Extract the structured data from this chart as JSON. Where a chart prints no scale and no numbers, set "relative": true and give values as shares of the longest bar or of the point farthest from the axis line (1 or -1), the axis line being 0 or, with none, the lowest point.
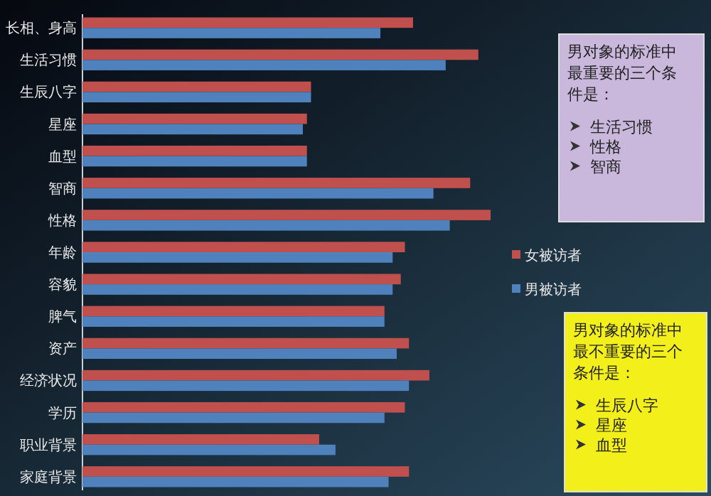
{
  "chart_data": {
    "type": "bar",
    "orientation": "horizontal",
    "relative": true,
    "categories": [
      "长相、身高",
      "生活习惯",
      "生辰八字",
      "星座",
      "血型",
      "智商",
      "性格",
      "年龄",
      "容貌",
      "脾气",
      "资产",
      "经济状况",
      "学历",
      "职业背景",
      "家庭背景"
    ],
    "series": [
      {
        "name": "女被访者",
        "color": "#c0504d",
        "values": [
          0.81,
          0.97,
          0.56,
          0.55,
          0.55,
          0.95,
          1,
          0.79,
          0.78,
          0.74,
          0.8,
          0.85,
          0.79,
          0.58,
          0.8
        ]
      },
      {
        "name": "男被访者",
        "color": "#4f81bd",
        "values": [
          0.73,
          0.89,
          0.56,
          0.54,
          0.55,
          0.86,
          0.9,
          0.76,
          0.76,
          0.74,
          0.77,
          0.8,
          0.74,
          0.62,
          0.75
        ]
      }
    ],
    "legend": "right",
    "annotations": [
      "男对象的标准中最重要的三个条件是：",
      "生活习惯",
      "性格",
      "智商",
      "男对象的标准中最不重要的三个条件是：",
      "生辰八字",
      "星座",
      "血型"
    ]
  }
}
